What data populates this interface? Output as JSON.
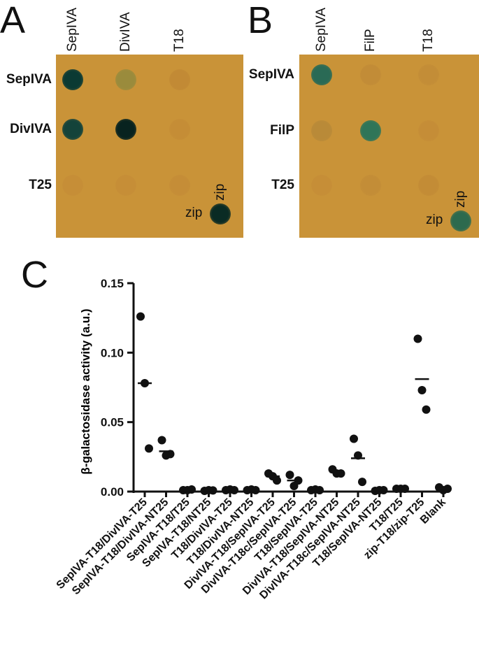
{
  "panels": {
    "A": {
      "letter": "A",
      "columns": [
        "SepIVA",
        "DivIVA",
        "T18"
      ],
      "rows": [
        "SepIVA",
        "DivIVA",
        "T25"
      ],
      "zip_col": "zip",
      "zip_row": "zip",
      "spot_colors": [
        [
          "#0b3a33",
          "#9a8b3c",
          "#c28a35"
        ],
        [
          "#14433a",
          "#08231f",
          "#c58d36"
        ],
        [
          "#c68e37",
          "#c68e37",
          "#c58d37"
        ]
      ],
      "zip_spot_color": "#0a2b24"
    },
    "B": {
      "letter": "B",
      "columns": [
        "SepIVA",
        "FilP",
        "T18"
      ],
      "rows": [
        "SepIVA",
        "FilP",
        "T25"
      ],
      "zip_col": "zip",
      "zip_row": "zip",
      "spot_colors": [
        [
          "#2a6a55",
          "#c28c37",
          "#c38d37"
        ],
        [
          "#b98a38",
          "#2f7558",
          "#c58d37"
        ],
        [
          "#c68e37",
          "#c38d37",
          "#c38c36"
        ]
      ],
      "zip_spot_color": "#2c6a4e"
    },
    "C": {
      "letter": "C"
    }
  },
  "colors": {
    "plate": "#c99338",
    "dot": "#111111"
  },
  "chart_data": {
    "type": "scatter",
    "ylabel": "β-galactosidase activity (a.u.)",
    "ylim": [
      0,
      0.15
    ],
    "yticks": [
      "0.00",
      "0.05",
      "0.10",
      "0.15"
    ],
    "ytick_values": [
      0,
      0.05,
      0.1,
      0.15
    ],
    "categories": [
      "SepIVA-T18/DivIVA-T25",
      "SepIVA-T18/DivIVA-NT25",
      "SepIVA-T18/T25",
      "SepIVA-T18/NT25",
      "T18/DivIVA-T25",
      "T18/DivIVA-NT25",
      "DivIVA-T18/SepIVA-T25",
      "DivIVA-T18c/SepIVA-T25",
      "T18/SepIVA-T25",
      "DivIVA-T18/SepIVA-NT25",
      "DivIVA-T18c/SepIVA-NT25",
      "T18/SepIVA-NT25",
      "T18/T25",
      "zip-T18/zip-T25",
      "Blank"
    ],
    "points": [
      [
        0.126,
        0.078,
        0.031
      ],
      [
        0.037,
        0.026,
        0.027
      ],
      [
        0.001,
        0.001,
        0.0015
      ],
      [
        0.0005,
        0.001,
        0.0008
      ],
      [
        0.001,
        0.0015,
        0.001
      ],
      [
        0.001,
        0.0015,
        0.001
      ],
      [
        0.013,
        0.011,
        0.008
      ],
      [
        0.012,
        0.004,
        0.008
      ],
      [
        0.001,
        0.0015,
        0.001
      ],
      [
        0.016,
        0.013,
        0.013
      ],
      [
        0.038,
        0.026,
        0.007
      ],
      [
        0.0005,
        0.001,
        0.001
      ],
      [
        0.002,
        0.002,
        0.002
      ],
      [
        0.11,
        0.073,
        0.059
      ],
      [
        0.003,
        0.001,
        0.002
      ]
    ],
    "means": [
      0.078,
      0.029,
      0.001,
      0.001,
      0.001,
      0.001,
      0.011,
      0.008,
      0.001,
      0.014,
      0.024,
      0.001,
      0.002,
      0.081,
      0.002
    ]
  }
}
